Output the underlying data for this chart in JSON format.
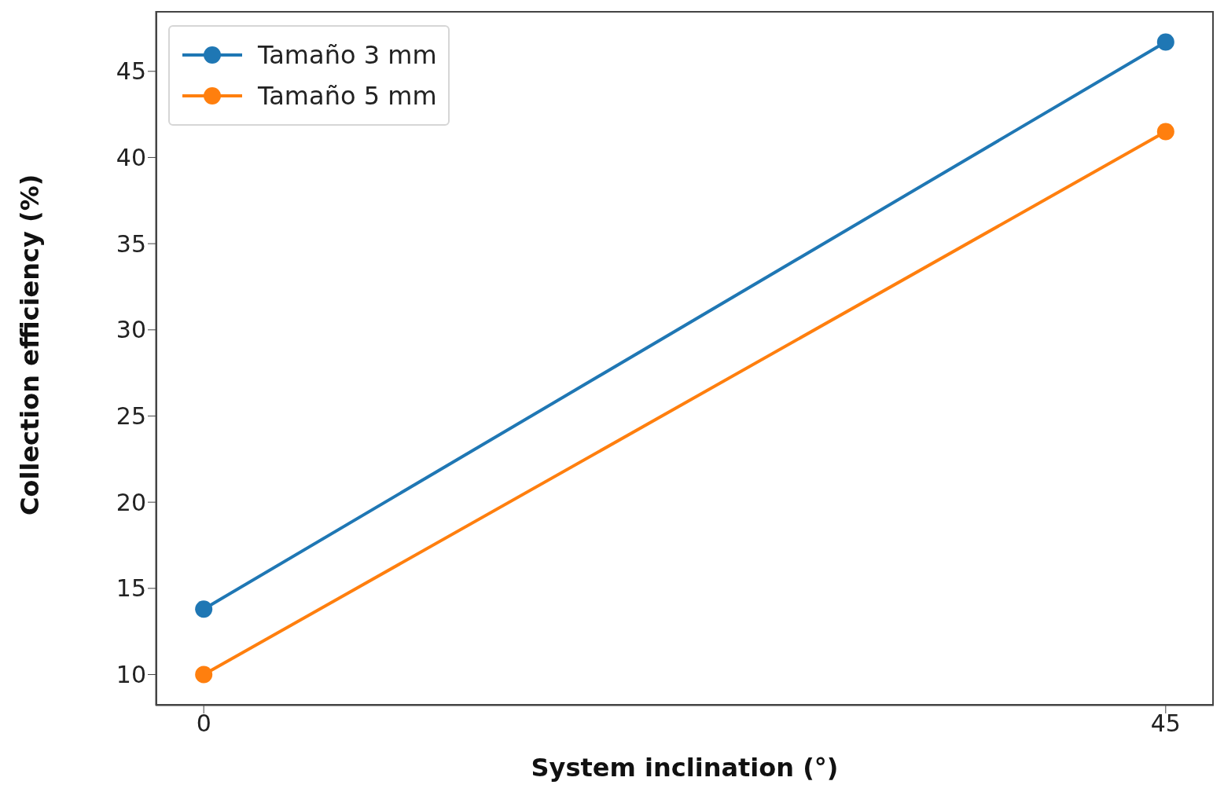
{
  "chart_data": {
    "type": "line",
    "xlabel": "System inclination (°)",
    "ylabel": "Collection efficiency (%)",
    "x": [
      0,
      45
    ],
    "series": [
      {
        "name": "Tamaño 3 mm",
        "color": "#1f77b4",
        "values": [
          13.8,
          46.7
        ]
      },
      {
        "name": "Tamaño 5 mm",
        "color": "#ff7f0e",
        "values": [
          10.0,
          41.5
        ]
      }
    ],
    "xlim": [
      -2.25,
      47.25
    ],
    "xticks": [
      0,
      45
    ],
    "ylim": [
      8.2,
      48.5
    ],
    "yticks": [
      10,
      15,
      20,
      25,
      30,
      35,
      40,
      45
    ],
    "grid": false,
    "legend": "top left",
    "marker": "circle",
    "line_style": "solid"
  }
}
